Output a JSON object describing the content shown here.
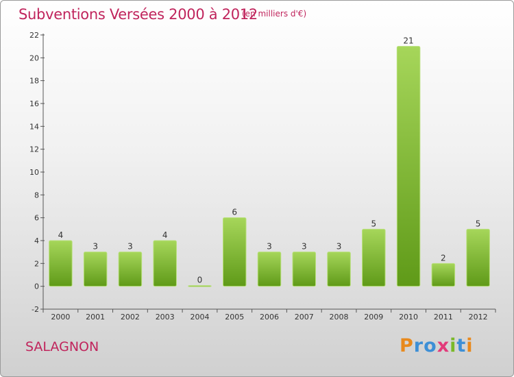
{
  "header": {
    "title": "Subventions Versées 2000 à 2012",
    "unit_note": "(en milliers d'€)"
  },
  "footer": {
    "commune": "SALAGNON",
    "logo_text": "Proxiti"
  },
  "colors": {
    "title": "#c0245c",
    "bar_top": "#a6d65a",
    "bar_bottom": "#5f9a18",
    "logo_letters": [
      "#e8891c",
      "#3d8fd6",
      "#3d8fd6",
      "#e23a7a",
      "#7ab929",
      "#3d8fd6",
      "#e8891c"
    ]
  },
  "chart_data": {
    "type": "bar",
    "title": "Subventions Versées 2000 à 2012",
    "subtitle": "(en milliers d'€)",
    "xlabel": "",
    "ylabel": "",
    "categories": [
      "2000",
      "2001",
      "2002",
      "2003",
      "2004",
      "2005",
      "2006",
      "2007",
      "2008",
      "2009",
      "2010",
      "2011",
      "2012"
    ],
    "values": [
      4,
      3,
      3,
      4,
      0,
      6,
      3,
      3,
      3,
      5,
      21,
      2,
      5
    ],
    "data_labels": [
      "4",
      "3",
      "3",
      "4",
      "0",
      "6",
      "3",
      "3",
      "3",
      "5",
      "21",
      "2",
      "5"
    ],
    "ylim": [
      -2,
      22
    ],
    "yticks": [
      -2,
      0,
      2,
      4,
      6,
      8,
      10,
      12,
      14,
      16,
      18,
      20,
      22
    ],
    "ytick_labels": [
      "-2",
      "0",
      "2",
      "4",
      "6",
      "8",
      "10",
      "12",
      "14",
      "16",
      "18",
      "20",
      "22"
    ],
    "grid": false,
    "legend": "none"
  }
}
